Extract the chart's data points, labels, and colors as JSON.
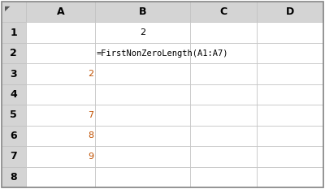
{
  "fig_width": 4.0,
  "fig_height": 2.33,
  "dpi": 100,
  "background_color": "#ffffff",
  "outer_border_color": "#888888",
  "grid_color": "#c0c0c0",
  "header_bg": "#d4d4d4",
  "header_text_color": "#000000",
  "col_labels": [
    "",
    "A",
    "B",
    "C",
    "D"
  ],
  "row_labels": [
    "",
    "1",
    "2",
    "3",
    "4",
    "5",
    "6",
    "7",
    "8"
  ],
  "cell_data": {
    "B1": {
      "text": "2",
      "align": "center",
      "color": "#000000",
      "fontsize": 8
    },
    "B2": {
      "text": "=FirstNonZeroLength(A1:A7)",
      "align": "left",
      "color": "#000000",
      "fontsize": 7.5
    },
    "A3": {
      "text": "2",
      "align": "right",
      "color": "#c05000",
      "fontsize": 8
    },
    "A5": {
      "text": "7",
      "align": "right",
      "color": "#c05000",
      "fontsize": 8
    },
    "A6": {
      "text": "8",
      "align": "right",
      "color": "#c05000",
      "fontsize": 8
    },
    "A7": {
      "text": "9",
      "align": "right",
      "color": "#c05000",
      "fontsize": 8
    }
  },
  "col_props": [
    0.075,
    0.215,
    0.295,
    0.207,
    0.208
  ],
  "header_fontsize": 9,
  "row_label_fontsize": 9,
  "corner_symbol": "◤"
}
